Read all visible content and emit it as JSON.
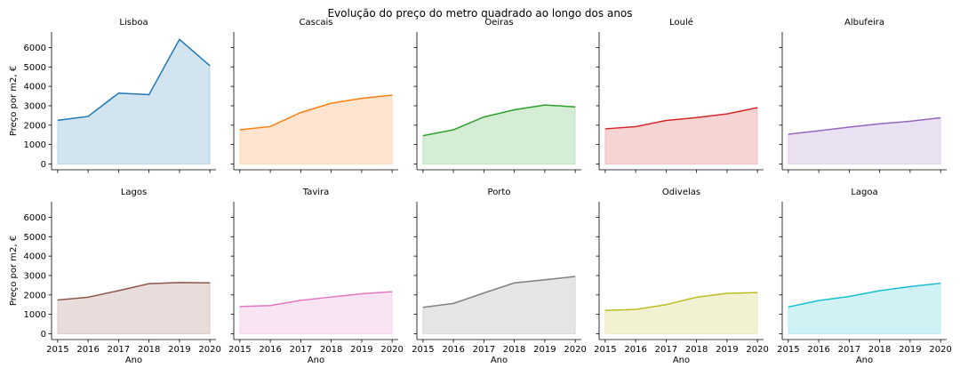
{
  "chart_data": {
    "type": "area",
    "title": "Evolução do preço do metro quadrado ao longo dos anos",
    "xlabel": "Ano",
    "ylabel": "Preço por m2, €",
    "x": [
      2015,
      2016,
      2017,
      2018,
      2019,
      2020
    ],
    "x_ticks": [
      "2015",
      "2016",
      "2017",
      "2018",
      "2019",
      "2020"
    ],
    "y_ticks": [
      "0",
      "1000",
      "2000",
      "3000",
      "4000",
      "5000",
      "6000"
    ],
    "ylim": [
      -300,
      6800
    ],
    "xlim": [
      2014.8,
      2020.2
    ],
    "grid": false,
    "layout": "2 rows x 5 columns, shared axes",
    "series": [
      {
        "name": "Lisboa",
        "color": "#1f77b4",
        "values": [
          2250,
          2450,
          3650,
          3570,
          6420,
          5060
        ]
      },
      {
        "name": "Cascais",
        "color": "#ff7f0e",
        "values": [
          1760,
          1930,
          2650,
          3130,
          3380,
          3550
        ]
      },
      {
        "name": "Oeiras",
        "color": "#2ca02c",
        "values": [
          1460,
          1760,
          2420,
          2790,
          3040,
          2940
        ]
      },
      {
        "name": "Loulé",
        "color": "#d62728",
        "values": [
          1810,
          1920,
          2240,
          2390,
          2580,
          2900
        ]
      },
      {
        "name": "Albufeira",
        "color": "#9467bd",
        "values": [
          1530,
          1710,
          1900,
          2070,
          2200,
          2380
        ]
      },
      {
        "name": "Lagos",
        "color": "#8c564b",
        "values": [
          1740,
          1880,
          2220,
          2580,
          2640,
          2620
        ]
      },
      {
        "name": "Tavira",
        "color": "#e377c2",
        "values": [
          1400,
          1450,
          1720,
          1890,
          2060,
          2170
        ]
      },
      {
        "name": "Porto",
        "color": "#7f7f7f",
        "values": [
          1360,
          1560,
          2100,
          2620,
          2780,
          2950
        ]
      },
      {
        "name": "Odivelas",
        "color": "#bcbd22",
        "values": [
          1200,
          1250,
          1500,
          1880,
          2080,
          2120
        ]
      },
      {
        "name": "Lagoa",
        "color": "#17becf",
        "values": [
          1380,
          1710,
          1920,
          2220,
          2430,
          2600
        ]
      }
    ]
  }
}
